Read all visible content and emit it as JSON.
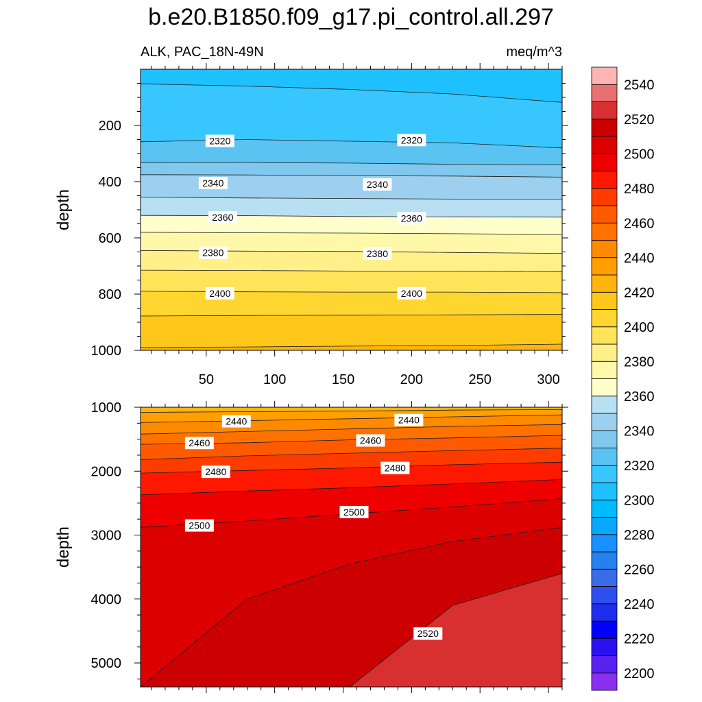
{
  "chart_data": {
    "type": "contour",
    "title": "b.e20.B1850.f09_g17.pi_control.all.297",
    "variable_label": "ALK, PAC_18N-49N",
    "units_label": "meq/m^3",
    "colorbar": {
      "levels": [
        2200,
        2210,
        2220,
        2230,
        2240,
        2250,
        2260,
        2270,
        2280,
        2290,
        2300,
        2310,
        2320,
        2330,
        2340,
        2350,
        2360,
        2370,
        2380,
        2390,
        2400,
        2410,
        2420,
        2430,
        2440,
        2450,
        2460,
        2470,
        2480,
        2490,
        2500,
        2510,
        2520,
        2530,
        2540,
        2550
      ],
      "tick_labels": [
        "2200",
        "2220",
        "2240",
        "2260",
        "2280",
        "2300",
        "2320",
        "2340",
        "2360",
        "2380",
        "2400",
        "2420",
        "2440",
        "2460",
        "2480",
        "2500",
        "2520",
        "2540"
      ],
      "colors": [
        "#8b2ef0",
        "#5a20f0",
        "#2b10f0",
        "#0000ff",
        "#1e2df0",
        "#2e4ff0",
        "#3a6ce8",
        "#2680f0",
        "#1890ff",
        "#08a8ff",
        "#00bbff",
        "#1ec0ff",
        "#38c6ff",
        "#5ac3f2",
        "#80c8ee",
        "#9cd0ee",
        "#b8e0f2",
        "#ffffcc",
        "#fff8a8",
        "#fff08a",
        "#ffe45a",
        "#ffd630",
        "#ffc71a",
        "#ffb40e",
        "#ffa000",
        "#ff8a00",
        "#ff7200",
        "#ff5a00",
        "#ff3c00",
        "#ff1800",
        "#ee0000",
        "#dd0000",
        "#cc0000",
        "#d83030",
        "#e87070",
        "#ffb4b4"
      ]
    },
    "panels": [
      {
        "name": "upper",
        "ylabel": "depth",
        "ylim": [
          0,
          1000
        ],
        "xlim": [
          2,
          310
        ],
        "xticks": [
          "50",
          "100",
          "150",
          "200",
          "250",
          "300"
        ],
        "yticks": [
          "200",
          "400",
          "600",
          "800",
          "1000"
        ],
        "contours": [
          {
            "level": 2310,
            "depths": [
              52,
              60,
              72,
              88,
              118
            ]
          },
          {
            "level": 2320,
            "depths": [
              258,
              250,
              256,
              262,
              280
            ]
          },
          {
            "level": 2330,
            "depths": [
              333,
              332,
              334,
              338,
              340
            ]
          },
          {
            "level": 2340,
            "depths": [
              375,
              376,
              379,
              380,
              384
            ]
          },
          {
            "level": 2350,
            "depths": [
              455,
              458,
              460,
              462,
              462
            ]
          },
          {
            "level": 2360,
            "depths": [
              520,
              521,
              524,
              525,
              526
            ]
          },
          {
            "level": 2370,
            "depths": [
              580,
              582,
              583,
              585,
              588
            ]
          },
          {
            "level": 2380,
            "depths": [
              645,
              647,
              648,
              652,
              655
            ]
          },
          {
            "level": 2390,
            "depths": [
              715,
              716,
              718,
              718,
              720
            ]
          },
          {
            "level": 2400,
            "depths": [
              790,
              792,
              793,
              793,
              795
            ]
          },
          {
            "level": 2410,
            "depths": [
              878,
              876,
              875,
              874,
              872
            ]
          },
          {
            "level": 2420,
            "depths": [
              990,
              988,
              985,
              983,
              978
            ]
          }
        ],
        "labels": [
          {
            "text": "2320",
            "x": 60,
            "y": 255
          },
          {
            "text": "2320",
            "x": 200,
            "y": 252
          },
          {
            "text": "2340",
            "x": 55,
            "y": 405
          },
          {
            "text": "2340",
            "x": 175,
            "y": 410
          },
          {
            "text": "2360",
            "x": 62,
            "y": 527
          },
          {
            "text": "2360",
            "x": 200,
            "y": 530
          },
          {
            "text": "2380",
            "x": 55,
            "y": 653
          },
          {
            "text": "2380",
            "x": 175,
            "y": 656
          },
          {
            "text": "2400",
            "x": 60,
            "y": 797
          },
          {
            "text": "2400",
            "x": 200,
            "y": 797
          }
        ]
      },
      {
        "name": "lower",
        "ylabel": "depth",
        "ylim": [
          1000,
          5375
        ],
        "xlim": [
          2,
          310
        ],
        "xticks": [
          "50",
          "100",
          "150",
          "200",
          "250",
          "300"
        ],
        "yticks": [
          "1000",
          "2000",
          "3000",
          "4000",
          "5000"
        ],
        "contours": [
          {
            "level": 2430,
            "depths": [
              1080,
              1070,
              1060,
              1045,
              1035
            ]
          },
          {
            "level": 2440,
            "depths": [
              1240,
              1210,
              1180,
              1150,
              1120
            ]
          },
          {
            "level": 2450,
            "depths": [
              1420,
              1380,
              1340,
              1300,
              1270
            ]
          },
          {
            "level": 2460,
            "depths": [
              1580,
              1555,
              1510,
              1480,
              1440
            ]
          },
          {
            "level": 2470,
            "depths": [
              1820,
              1760,
              1720,
              1680,
              1640
            ]
          },
          {
            "level": 2480,
            "depths": [
              2030,
              1990,
              1950,
              1900,
              1860
            ]
          },
          {
            "level": 2490,
            "depths": [
              2370,
              2310,
              2260,
              2200,
              2130
            ]
          },
          {
            "level": 2500,
            "depths": [
              2880,
              2780,
              2670,
              2560,
              2430
            ]
          },
          {
            "level": 2510,
            "depths": [
              5375,
              4000,
              3450,
              3100,
              2880
            ]
          },
          {
            "level": 2520,
            "depths": [
              5375,
              5375,
              5375,
              4100,
              3600
            ]
          }
        ],
        "labels": [
          {
            "text": "2440",
            "x": 72,
            "y": 1220
          },
          {
            "text": "2440",
            "x": 198,
            "y": 1200
          },
          {
            "text": "2460",
            "x": 45,
            "y": 1560
          },
          {
            "text": "2460",
            "x": 170,
            "y": 1520
          },
          {
            "text": "2480",
            "x": 57,
            "y": 2010
          },
          {
            "text": "2480",
            "x": 188,
            "y": 1950
          },
          {
            "text": "2500",
            "x": 45,
            "y": 2850
          },
          {
            "text": "2500",
            "x": 158,
            "y": 2640
          },
          {
            "text": "2520",
            "x": 212,
            "y": 4540
          }
        ]
      }
    ]
  }
}
